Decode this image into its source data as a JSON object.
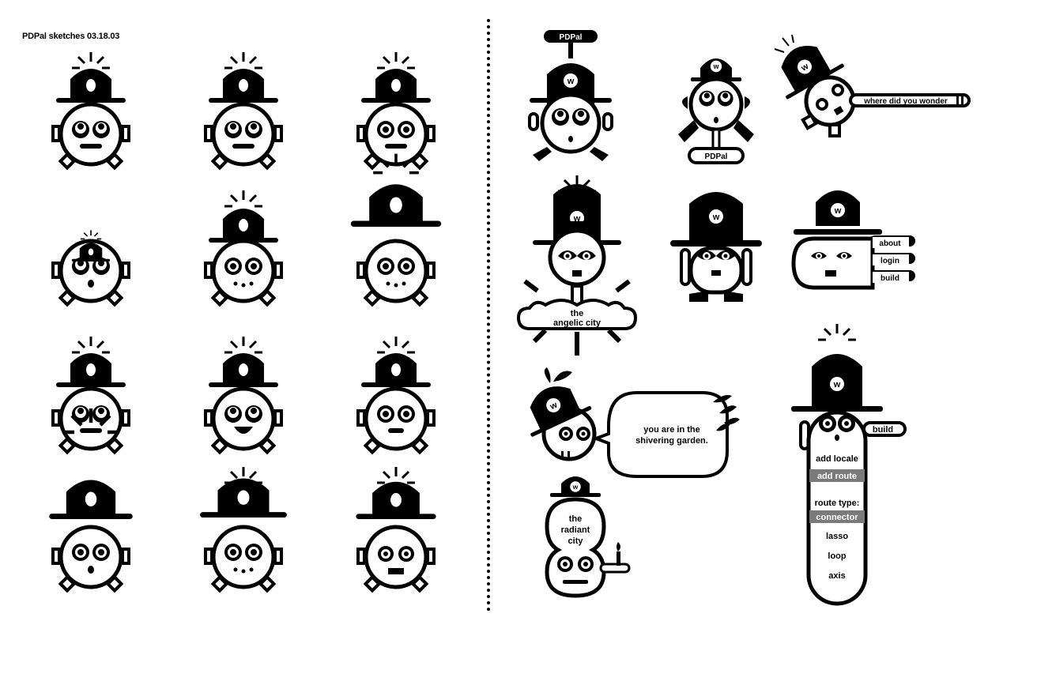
{
  "page_title": "PDPal sketches 03.18.03",
  "mascot": {
    "hat_badge": "w",
    "name_tag": "PDPal"
  },
  "concepts": {
    "propeller_tag": "PDPal",
    "belt_tag": "PDPal",
    "lance_message": "where did you wonder",
    "menu_tabs": [
      "about",
      "login",
      "build"
    ],
    "city_sign": [
      "the",
      "angelic city"
    ],
    "speech_bubble": [
      "you are in the",
      "shivering garden."
    ],
    "radiant_city": [
      "the",
      "radiant",
      "city"
    ],
    "build_tab": "build",
    "tall_menu": {
      "items": [
        "add locale",
        "add route",
        "route type:",
        "connector",
        "lasso",
        "loop",
        "axis"
      ],
      "highlighted": [
        "add route",
        "connector"
      ]
    }
  },
  "colors": {
    "ink": "#000000",
    "paper": "#ffffff",
    "highlight": "#7a7a7a"
  }
}
